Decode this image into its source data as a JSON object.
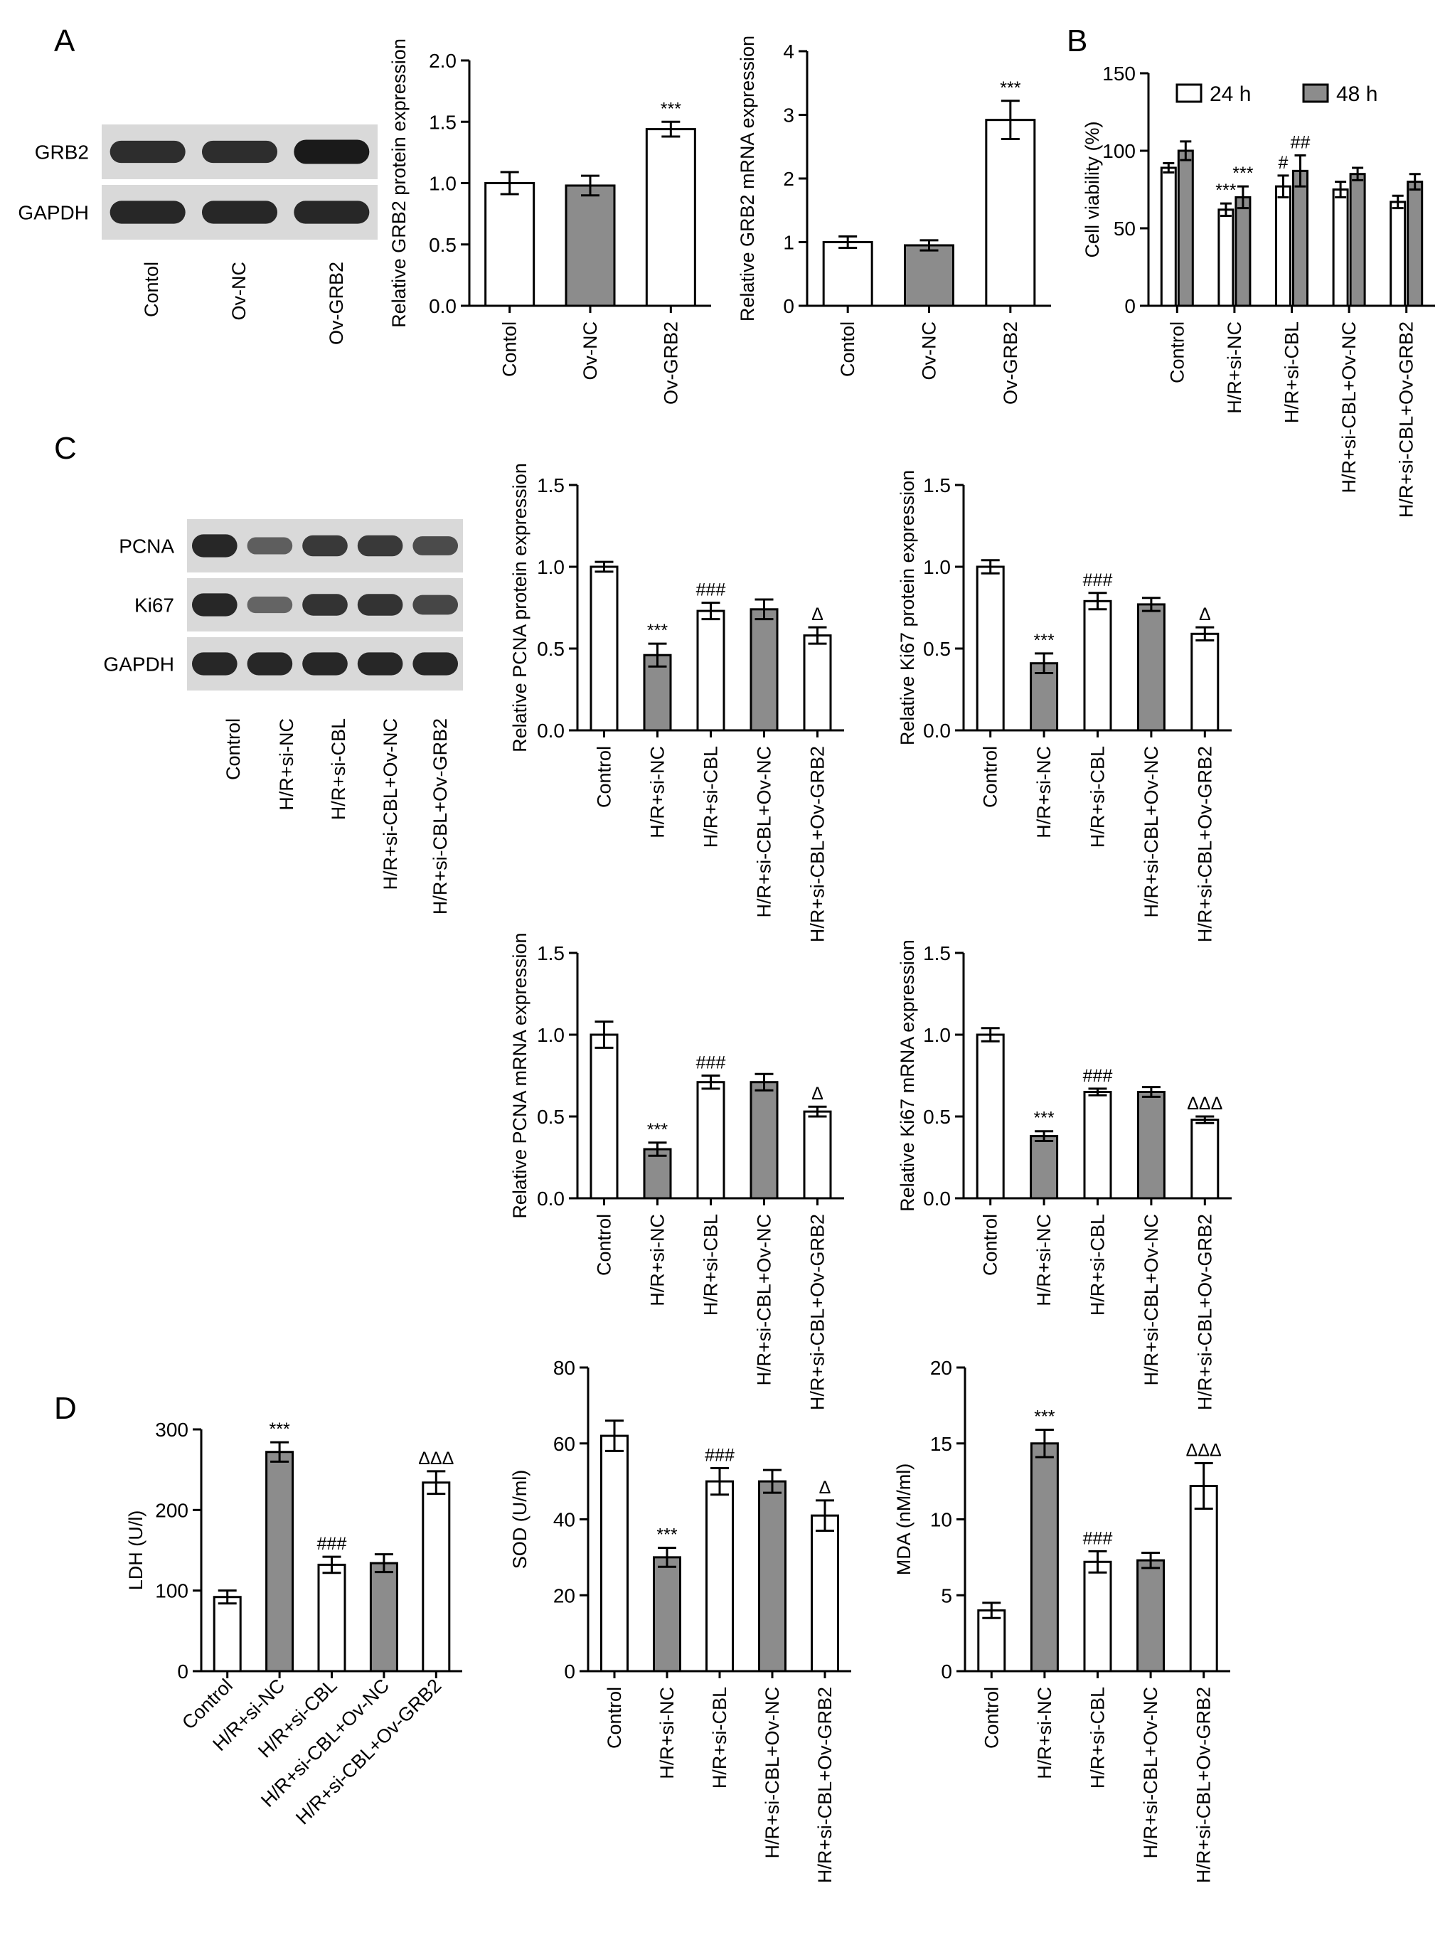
{
  "panels": {
    "A": "A",
    "B": "B",
    "C": "C",
    "D": "D"
  },
  "colors": {
    "gray_bar": "#8c8c8c",
    "white_bar": "#ffffff",
    "stroke": "#000000",
    "blot_bg": "#d9d9d9",
    "band": "#1a1a1a"
  },
  "blots": [
    {
      "id": "blot-a",
      "rows": [
        {
          "label": "GRB2",
          "intensity": [
            0.85,
            0.85,
            1.0
          ]
        },
        {
          "label": "GAPDH",
          "intensity": [
            0.9,
            0.9,
            0.9
          ]
        }
      ],
      "lanes": [
        "Contol",
        "Ov-NC",
        "Ov-GRB2"
      ]
    },
    {
      "id": "blot-c",
      "rows": [
        {
          "label": "PCNA",
          "intensity": [
            0.9,
            0.45,
            0.75,
            0.75,
            0.6
          ]
        },
        {
          "label": "Ki67",
          "intensity": [
            0.9,
            0.4,
            0.8,
            0.8,
            0.65
          ]
        },
        {
          "label": "GAPDH",
          "intensity": [
            0.9,
            0.9,
            0.9,
            0.9,
            0.9
          ]
        }
      ],
      "lanes": [
        "Control",
        "H/R+si-NC",
        "H/R+si-CBL",
        "H/R+si-CBL+Ov-NC",
        "H/R+si-CBL+Ov-GRB2"
      ]
    }
  ],
  "chart_data": [
    {
      "id": "a-protein",
      "type": "bar",
      "categories": [
        "Contol",
        "Ov-NC",
        "Ov-GRB2"
      ],
      "values": [
        1.0,
        0.98,
        1.44
      ],
      "errors": [
        0.09,
        0.08,
        0.06
      ],
      "fills": [
        "white",
        "gray",
        "white"
      ],
      "annotations": [
        "",
        "",
        "***"
      ],
      "ylabel": "Relative GRB2 protein expression",
      "ylim": [
        0,
        2.0
      ],
      "yticks": [
        "0.0",
        "0.5",
        "1.0",
        "1.5",
        "2.0"
      ]
    },
    {
      "id": "a-mrna",
      "type": "bar",
      "categories": [
        "Contol",
        "Ov-NC",
        "Ov-GRB2"
      ],
      "values": [
        1.0,
        0.95,
        2.92
      ],
      "errors": [
        0.09,
        0.08,
        0.3
      ],
      "fills": [
        "white",
        "gray",
        "white"
      ],
      "annotations": [
        "",
        "",
        "***"
      ],
      "ylabel": "Relative GRB2 mRNA expression",
      "ylim": [
        0,
        4
      ],
      "yticks": [
        "0",
        "1",
        "2",
        "3",
        "4"
      ]
    },
    {
      "id": "b-viability",
      "type": "bar",
      "categories": [
        "Control",
        "H/R+si-NC",
        "H/R+si-CBL",
        "H/R+si-CBL+Ov-NC",
        "H/R+si-CBL+Ov-GRB2"
      ],
      "series": [
        {
          "name": "24 h",
          "fill": "white",
          "values": [
            89,
            62,
            77,
            75,
            67
          ],
          "errors": [
            3,
            4,
            7,
            5,
            4
          ],
          "annotations": [
            "",
            "***",
            "#",
            "",
            ""
          ]
        },
        {
          "name": "48 h",
          "fill": "gray",
          "values": [
            100,
            70,
            87,
            85,
            80
          ],
          "errors": [
            6,
            7,
            10,
            4,
            5
          ],
          "annotations": [
            "",
            "***",
            "##",
            "",
            ""
          ]
        }
      ],
      "ylabel": "Cell viability (%)",
      "ylim": [
        0,
        150
      ],
      "yticks": [
        "0",
        "50",
        "100",
        "150"
      ],
      "legend": "top"
    },
    {
      "id": "c-pcna-protein",
      "type": "bar",
      "categories": [
        "Control",
        "H/R+si-NC",
        "H/R+si-CBL",
        "H/R+si-CBL+Ov-NC",
        "H/R+si-CBL+Ov-GRB2"
      ],
      "values": [
        1.0,
        0.46,
        0.73,
        0.74,
        0.58
      ],
      "errors": [
        0.03,
        0.07,
        0.05,
        0.06,
        0.05
      ],
      "fills": [
        "white",
        "gray",
        "white",
        "gray",
        "white"
      ],
      "annotations": [
        "",
        "***",
        "###",
        "",
        "Δ"
      ],
      "ylabel": "Relative PCNA protein expression",
      "ylim": [
        0,
        1.5
      ],
      "yticks": [
        "0.0",
        "0.5",
        "1.0",
        "1.5"
      ]
    },
    {
      "id": "c-ki67-protein",
      "type": "bar",
      "categories": [
        "Control",
        "H/R+si-NC",
        "H/R+si-CBL",
        "H/R+si-CBL+Ov-NC",
        "H/R+si-CBL+Ov-GRB2"
      ],
      "values": [
        1.0,
        0.41,
        0.79,
        0.77,
        0.59
      ],
      "errors": [
        0.04,
        0.06,
        0.05,
        0.04,
        0.04
      ],
      "fills": [
        "white",
        "gray",
        "white",
        "gray",
        "white"
      ],
      "annotations": [
        "",
        "***",
        "###",
        "",
        "Δ"
      ],
      "ylabel": "Relative Ki67 protein expression",
      "ylim": [
        0,
        1.5
      ],
      "yticks": [
        "0.0",
        "0.5",
        "1.0",
        "1.5"
      ]
    },
    {
      "id": "c-pcna-mrna",
      "type": "bar",
      "categories": [
        "Control",
        "H/R+si-NC",
        "H/R+si-CBL",
        "H/R+si-CBL+Ov-NC",
        "H/R+si-CBL+Ov-GRB2"
      ],
      "values": [
        1.0,
        0.3,
        0.71,
        0.71,
        0.53
      ],
      "errors": [
        0.08,
        0.04,
        0.04,
        0.05,
        0.03
      ],
      "fills": [
        "white",
        "gray",
        "white",
        "gray",
        "white"
      ],
      "annotations": [
        "",
        "***",
        "###",
        "",
        "Δ"
      ],
      "ylabel": "Relative PCNA mRNA expression",
      "ylim": [
        0,
        1.5
      ],
      "yticks": [
        "0.0",
        "0.5",
        "1.0",
        "1.5"
      ]
    },
    {
      "id": "c-ki67-mrna",
      "type": "bar",
      "categories": [
        "Control",
        "H/R+si-NC",
        "H/R+si-CBL",
        "H/R+si-CBL+Ov-NC",
        "H/R+si-CBL+Ov-GRB2"
      ],
      "values": [
        1.0,
        0.38,
        0.65,
        0.65,
        0.48
      ],
      "errors": [
        0.04,
        0.03,
        0.02,
        0.03,
        0.02
      ],
      "fills": [
        "white",
        "gray",
        "white",
        "gray",
        "white"
      ],
      "annotations": [
        "",
        "***",
        "###",
        "",
        "ΔΔΔ"
      ],
      "ylabel": "Relative Ki67 mRNA expression",
      "ylim": [
        0,
        1.5
      ],
      "yticks": [
        "0.0",
        "0.5",
        "1.0",
        "1.5"
      ]
    },
    {
      "id": "d-ldh",
      "type": "bar",
      "categories": [
        "Control",
        "H/R+si-NC",
        "H/R+si-CBL",
        "H/R+si-CBL+Ov-NC",
        "H/R+si-CBL+Ov-GRB2"
      ],
      "values": [
        92,
        272,
        132,
        134,
        234
      ],
      "errors": [
        8,
        12,
        10,
        11,
        14
      ],
      "fills": [
        "white",
        "gray",
        "white",
        "gray",
        "white"
      ],
      "annotations": [
        "",
        "***",
        "###",
        "",
        "ΔΔΔ"
      ],
      "ylabel": "LDH (U/l)",
      "ylim": [
        0,
        300
      ],
      "yticks": [
        "0",
        "100",
        "200",
        "300"
      ]
    },
    {
      "id": "d-sod",
      "type": "bar",
      "categories": [
        "Control",
        "H/R+si-NC",
        "H/R+si-CBL",
        "H/R+si-CBL+Ov-NC",
        "H/R+si-CBL+Ov-GRB2"
      ],
      "values": [
        62,
        30,
        50,
        50,
        41
      ],
      "errors": [
        4,
        2.5,
        3.5,
        3,
        4
      ],
      "fills": [
        "white",
        "gray",
        "white",
        "gray",
        "white"
      ],
      "annotations": [
        "",
        "***",
        "###",
        "",
        "Δ"
      ],
      "ylabel": "SOD (U/ml)",
      "ylim": [
        0,
        80
      ],
      "yticks": [
        "0",
        "20",
        "40",
        "60",
        "80"
      ]
    },
    {
      "id": "d-mda",
      "type": "bar",
      "categories": [
        "Control",
        "H/R+si-NC",
        "H/R+si-CBL",
        "H/R+si-CBL+Ov-NC",
        "H/R+si-CBL+Ov-GRB2"
      ],
      "values": [
        4.0,
        15.0,
        7.2,
        7.3,
        12.2
      ],
      "errors": [
        0.5,
        0.9,
        0.7,
        0.5,
        1.5
      ],
      "fills": [
        "white",
        "gray",
        "white",
        "gray",
        "white"
      ],
      "annotations": [
        "",
        "***",
        "###",
        "",
        "ΔΔΔ"
      ],
      "ylabel": "MDA (nM/ml)",
      "ylim": [
        0,
        20
      ],
      "yticks": [
        "0",
        "5",
        "10",
        "15",
        "20"
      ]
    }
  ]
}
